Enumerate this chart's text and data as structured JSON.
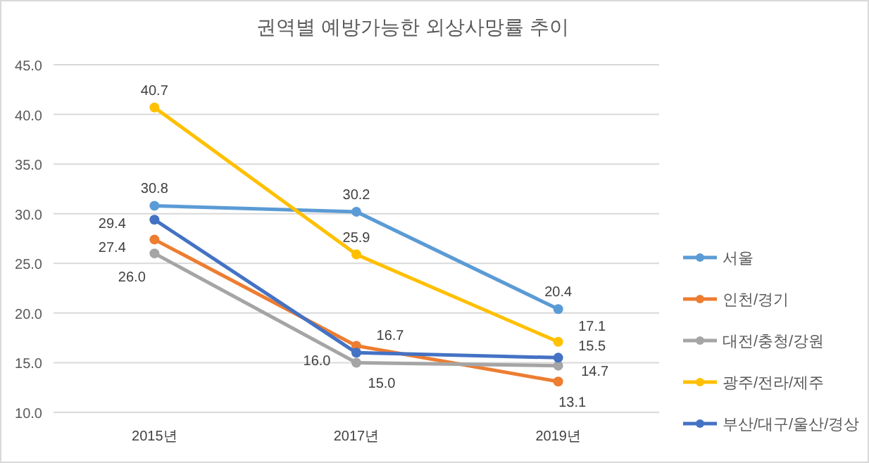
{
  "chart_data": {
    "type": "line",
    "title": "권역별 예방가능한 외상사망률 추이",
    "categories": [
      "2015년",
      "2017년",
      "2019년"
    ],
    "series": [
      {
        "name": "서울",
        "color": "#5b9bd5",
        "values": [
          30.8,
          30.2,
          20.4
        ],
        "value_labels": [
          "30.8",
          "30.2",
          "20.4"
        ]
      },
      {
        "name": "인천/경기",
        "color": "#ed7d31",
        "values": [
          27.4,
          16.7,
          13.1
        ],
        "value_labels": [
          "27.4",
          "16.7",
          "13.1"
        ]
      },
      {
        "name": "대전/충청/강원",
        "color": "#a5a5a5",
        "values": [
          26.0,
          15.0,
          14.7
        ],
        "value_labels": [
          "26.0",
          "15.0",
          "14.7"
        ]
      },
      {
        "name": "광주/전라/제주",
        "color": "#ffc000",
        "values": [
          40.7,
          25.9,
          17.1
        ],
        "value_labels": [
          "40.7",
          "25.9",
          "17.1"
        ]
      },
      {
        "name": "부산/대구/울산/경상",
        "color": "#4472c4",
        "values": [
          29.4,
          16.0,
          15.5
        ],
        "value_labels": [
          "29.4",
          "16.0",
          "15.5"
        ]
      }
    ],
    "ylim": [
      10,
      45
    ],
    "yticks": [
      {
        "value": 10,
        "label": "10.0"
      },
      {
        "value": 15,
        "label": "15.0"
      },
      {
        "value": 20,
        "label": "20.0"
      },
      {
        "value": 25,
        "label": "25.0"
      },
      {
        "value": 30,
        "label": "30.0"
      },
      {
        "value": 35,
        "label": "35.0"
      },
      {
        "value": 40,
        "label": "40.0"
      },
      {
        "value": 45,
        "label": "45.0"
      }
    ],
    "grid": "y",
    "legend": "right",
    "marker": "circle",
    "line_style": "solid"
  }
}
